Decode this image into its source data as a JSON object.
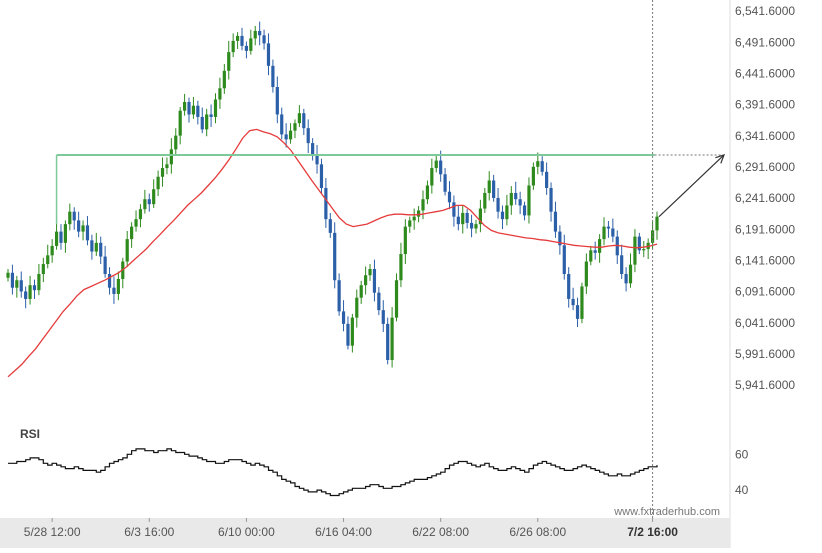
{
  "colors": {
    "bull": "#2f8a1e",
    "bear": "#2b5fa8",
    "ma": "#e53b3b",
    "resistance": "#7ec99a",
    "rsi": "#111111",
    "axis_text": "#555555",
    "grid": "#e6e6e6",
    "bottom_bar": "#e9e9e9",
    "arrow": "#333333"
  },
  "watermark": "www.fxtraderhub.com",
  "chart_data": [
    {
      "type": "candlestick",
      "title": "",
      "y_ticks": [
        "6,541.6000",
        "6,491.6000",
        "6,441.6000",
        "6,391.6000",
        "6,341.6000",
        "6,291.6000",
        "6,241.6000",
        "6,191.6000",
        "6,141.6000",
        "6,091.6000",
        "6,041.6000",
        "5,991.6000",
        "5,941.6000"
      ],
      "y_tick_values": [
        6541.6,
        6491.6,
        6441.6,
        6391.6,
        6341.6,
        6291.6,
        6241.6,
        6191.6,
        6141.6,
        6091.6,
        6041.6,
        5991.6,
        5941.6
      ],
      "ylim": [
        5905,
        6550
      ],
      "x_ticks": [
        "5/28 12:00",
        "6/3 16:00",
        "6/10 00:00",
        "6/16 04:00",
        "6/22 08:00",
        "6/26 08:00",
        "7/2 16:00"
      ],
      "x_tick_index": [
        10,
        32,
        54,
        76,
        98,
        120,
        146
      ],
      "bars": 148,
      "resistance_level": 6311,
      "resistance_start_index": 11,
      "projection_target": 6311,
      "current_time_index": 146,
      "series_close": [
        6122,
        6098,
        6110,
        6092,
        6080,
        6102,
        6094,
        6120,
        6136,
        6150,
        6165,
        6188,
        6170,
        6200,
        6220,
        6206,
        6188,
        6198,
        6174,
        6156,
        6170,
        6148,
        6120,
        6098,
        6088,
        6112,
        6140,
        6176,
        6196,
        6208,
        6224,
        6240,
        6232,
        6256,
        6276,
        6290,
        6296,
        6320,
        6342,
        6382,
        6396,
        6376,
        6390,
        6372,
        6352,
        6376,
        6372,
        6400,
        6418,
        6446,
        6476,
        6494,
        6502,
        6486,
        6478,
        6498,
        6510,
        6503,
        6490,
        6454,
        6420,
        6376,
        6344,
        6336,
        6350,
        6362,
        6378,
        6354,
        6330,
        6312,
        6296,
        6258,
        6208,
        6186,
        6110,
        6060,
        6040,
        6005,
        6050,
        6082,
        6102,
        6118,
        6128,
        6090,
        6062,
        6040,
        5982,
        6050,
        6110,
        6152,
        6196,
        6206,
        6212,
        6222,
        6240,
        6262,
        6290,
        6302,
        6280,
        6252,
        6235,
        6212,
        6200,
        6218,
        6202,
        6193,
        6200,
        6225,
        6250,
        6270,
        6242,
        6220,
        6208,
        6230,
        6250,
        6240,
        6230,
        6214,
        6262,
        6292,
        6301,
        6284,
        6258,
        6220,
        6188,
        6166,
        6120,
        6080,
        6070,
        6048,
        6100,
        6140,
        6158,
        6154,
        6176,
        6196,
        6193,
        6180,
        6150,
        6120,
        6105,
        6135,
        6180,
        6158,
        6160,
        6170,
        6190,
        6212
      ],
      "moving_average": [
        5955,
        5965,
        5975,
        5988,
        6000,
        6015,
        6030,
        6045,
        6060,
        6072,
        6085,
        6095,
        6100,
        6105,
        6110,
        6116,
        6122,
        6130,
        6140,
        6150,
        6160,
        6172,
        6183,
        6195,
        6206,
        6218,
        6230,
        6240,
        6250,
        6262,
        6274,
        6288,
        6303,
        6320,
        6338,
        6350,
        6352,
        6348,
        6345,
        6340,
        6330,
        6318,
        6302,
        6286,
        6270,
        6255,
        6240,
        6225,
        6210,
        6200,
        6196,
        6198,
        6200,
        6205,
        6210,
        6214,
        6216,
        6216,
        6215,
        6215,
        6216,
        6218,
        6220,
        6222,
        6226,
        6230,
        6230,
        6222,
        6210,
        6198,
        6190,
        6186,
        6184,
        6182,
        6180,
        6178,
        6177,
        6175,
        6174,
        6172,
        6170,
        6168,
        6166,
        6165,
        6164,
        6163,
        6163,
        6165,
        6166,
        6165,
        6163,
        6162,
        6163,
        6165,
        6168
      ],
      "rsi_ticks": [
        "60",
        "40"
      ],
      "rsi_tick_values": [
        60,
        40
      ],
      "rsi_label": "RSI",
      "rsi_ylim": [
        30,
        68
      ],
      "rsi": [
        55,
        55,
        56,
        56,
        57,
        58,
        58,
        57,
        55,
        54,
        55,
        54,
        53,
        52,
        52,
        53,
        52,
        51,
        51,
        51,
        50,
        51,
        53,
        55,
        56,
        57,
        58,
        60,
        62,
        63,
        63,
        62,
        62,
        61,
        62,
        62,
        63,
        62,
        61,
        61,
        60,
        59,
        59,
        58,
        57,
        56,
        56,
        55,
        55,
        56,
        57,
        57,
        57,
        56,
        55,
        54,
        55,
        54,
        53,
        51,
        50,
        48,
        46,
        45,
        44,
        42,
        41,
        40,
        39,
        39,
        40,
        39,
        38,
        37,
        37,
        38,
        39,
        40,
        41,
        41,
        41,
        42,
        43,
        43,
        42,
        41,
        41,
        42,
        42,
        43,
        44,
        45,
        46,
        46,
        46,
        47,
        48,
        49,
        50,
        52,
        54,
        55,
        56,
        56,
        55,
        54,
        53,
        54,
        55,
        53,
        52,
        51,
        51,
        52,
        53,
        52,
        51,
        50,
        52,
        54,
        55,
        56,
        55,
        54,
        53,
        52,
        51,
        51,
        52,
        53,
        54,
        53,
        52,
        51,
        50,
        49,
        48,
        48,
        49,
        48,
        48,
        49,
        50,
        51,
        52,
        53,
        53,
        54
      ]
    }
  ]
}
